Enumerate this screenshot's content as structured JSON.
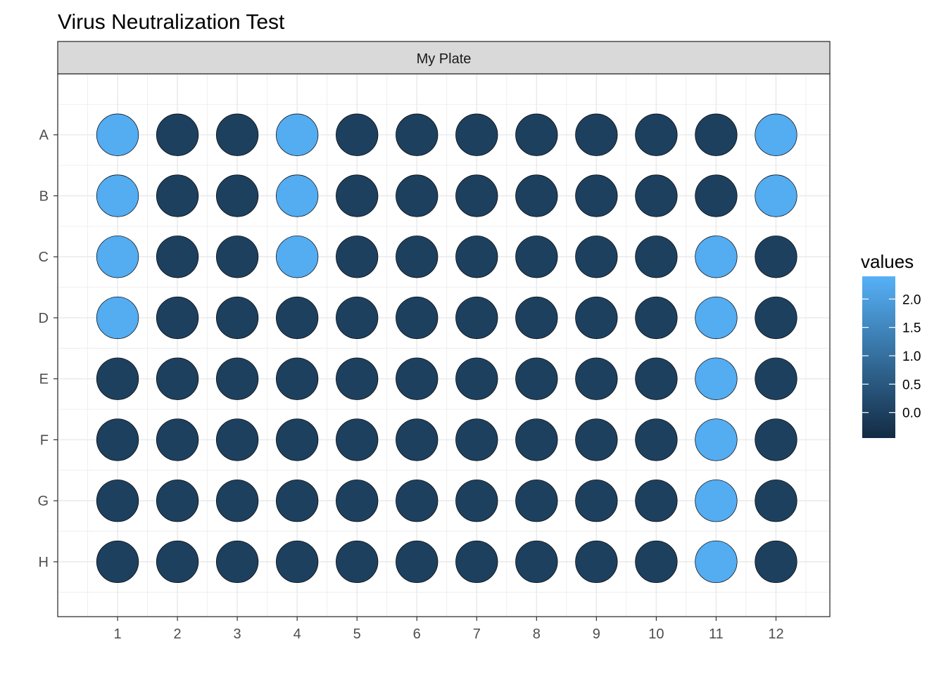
{
  "chart_data": {
    "type": "scatter",
    "title": "Virus Neutralization Test",
    "facet_label": "My Plate",
    "x_ticks": [
      "1",
      "2",
      "3",
      "4",
      "5",
      "6",
      "7",
      "8",
      "9",
      "10",
      "11",
      "12"
    ],
    "y_ticks": [
      "A",
      "B",
      "C",
      "D",
      "E",
      "F",
      "G",
      "H"
    ],
    "xlim": [
      0.0,
      12.9
    ],
    "ylim": [
      0.0,
      8.9
    ],
    "grid": true,
    "legend": {
      "title": "values",
      "placement": "right",
      "breaks": [
        2.0,
        1.5,
        1.0,
        0.5,
        0.0
      ],
      "break_labels": [
        "2.0",
        "1.5",
        "1.0",
        "0.5",
        "0.0"
      ],
      "range": [
        -0.45,
        2.4
      ],
      "low_color": "#132B43",
      "high_color": "#56B1F7"
    },
    "values": [
      [
        2.3,
        0.0,
        0.0,
        2.3,
        0.0,
        0.0,
        0.0,
        0.0,
        0.0,
        0.0,
        0.0,
        2.3
      ],
      [
        2.3,
        0.0,
        0.0,
        2.3,
        0.0,
        0.0,
        0.0,
        0.0,
        0.0,
        0.0,
        0.0,
        2.3
      ],
      [
        2.3,
        0.0,
        0.0,
        2.3,
        0.0,
        0.0,
        0.0,
        0.0,
        0.0,
        0.0,
        2.3,
        0.0
      ],
      [
        2.3,
        0.0,
        0.0,
        0.0,
        0.0,
        0.0,
        0.0,
        0.0,
        0.0,
        0.0,
        2.3,
        0.0
      ],
      [
        0.0,
        0.0,
        0.0,
        0.0,
        0.0,
        0.0,
        0.0,
        0.0,
        0.0,
        0.0,
        2.3,
        0.0
      ],
      [
        0.0,
        0.0,
        0.0,
        0.0,
        0.0,
        0.0,
        0.0,
        0.0,
        0.0,
        0.0,
        2.3,
        0.0
      ],
      [
        0.0,
        0.0,
        0.0,
        0.0,
        0.0,
        0.0,
        0.0,
        0.0,
        0.0,
        0.0,
        2.3,
        0.0
      ],
      [
        0.0,
        0.0,
        0.0,
        0.0,
        0.0,
        0.0,
        0.0,
        0.0,
        0.0,
        0.0,
        2.3,
        0.0
      ]
    ]
  }
}
